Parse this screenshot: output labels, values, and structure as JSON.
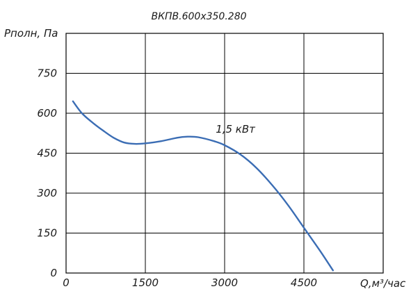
{
  "chart_data": {
    "type": "line",
    "title": "ВКПВ.600х350.280",
    "ylabel": "Pполн, Па",
    "xlabel": "Q,м³/час",
    "xlim": [
      0,
      6000
    ],
    "ylim": [
      0,
      900
    ],
    "grid": true,
    "x_ticks": [
      "0",
      "1500",
      "3000",
      "4500"
    ],
    "y_ticks": [
      "0",
      "150",
      "300",
      "450",
      "600",
      "750"
    ],
    "annotation": {
      "text": "1,5 кВт",
      "x": 2700,
      "y": 540
    },
    "series": [
      {
        "color": "#3b6db4",
        "x": [
          130,
          300,
          500,
          700,
          900,
          1100,
          1300,
          1500,
          1800,
          2100,
          2300,
          2500,
          2800,
          3000,
          3300,
          3600,
          3900,
          4200,
          4500,
          4800,
          5050
        ],
        "y": [
          645,
          600,
          565,
          535,
          508,
          490,
          485,
          487,
          495,
          508,
          512,
          510,
          495,
          480,
          445,
          395,
          330,
          255,
          170,
          85,
          10
        ]
      }
    ]
  }
}
